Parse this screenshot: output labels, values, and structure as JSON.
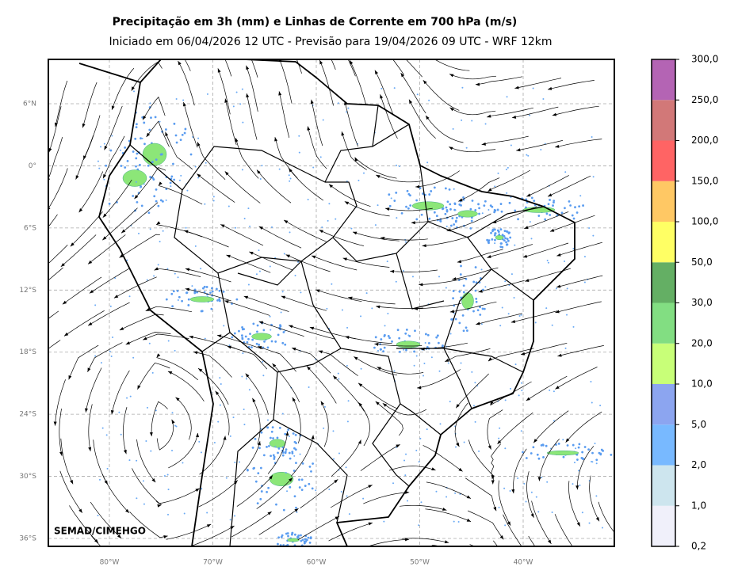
{
  "header": {
    "title": "Precipitação em 3h (mm) e Linhas de Corrente em 700 hPa (m/s)",
    "subtitle": "Iniciado em 06/04/2026 12 UTC - Previsão para 19/04/2026 09 UTC - WRF 12km"
  },
  "map": {
    "lat_labels": [
      "6°N",
      "0°",
      "6°S",
      "12°S",
      "18°S",
      "24°S",
      "30°S",
      "36°S"
    ],
    "lon_labels": [
      "80°W",
      "70°W",
      "60°W",
      "50°W",
      "40°W"
    ]
  },
  "colorbar": {
    "labels": [
      "0,2",
      "1,0",
      "2,0",
      "5,0",
      "10,0",
      "20,0",
      "30,0",
      "50,0",
      "100,0",
      "150,0",
      "200,0",
      "250,0",
      "300,0"
    ],
    "colors": [
      "#f0f0fa",
      "#cde5ee",
      "#78b9ff",
      "#8ca5f0",
      "#c8ff78",
      "#82de82",
      "#64af64",
      "#ffff64",
      "#ffc864",
      "#ff6464",
      "#d27878",
      "#b464b4"
    ]
  },
  "credit": "SEMAD/CIMEHGO"
}
